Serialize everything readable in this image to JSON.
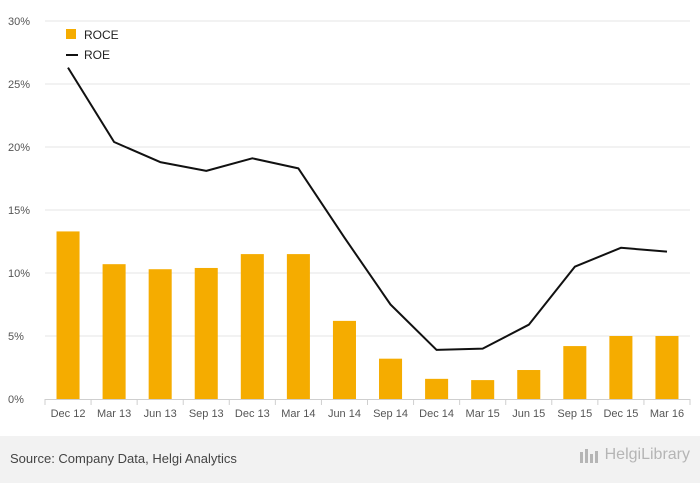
{
  "chart_data": {
    "type": "bar",
    "categories": [
      "Dec 12",
      "Mar 13",
      "Jun 13",
      "Sep 13",
      "Dec 13",
      "Mar 14",
      "Jun 14",
      "Sep 14",
      "Dec 14",
      "Mar 15",
      "Jun 15",
      "Sep 15",
      "Dec 15",
      "Mar 16"
    ],
    "series": [
      {
        "name": "ROCE",
        "type": "bar",
        "color": "#f5ac00",
        "values": [
          13.3,
          10.7,
          10.3,
          10.4,
          11.5,
          11.5,
          6.2,
          3.2,
          1.6,
          1.5,
          2.3,
          4.2,
          5.0,
          5.0
        ]
      },
      {
        "name": "ROE",
        "type": "line",
        "color": "#111111",
        "values": [
          26.3,
          20.4,
          18.8,
          18.1,
          19.1,
          18.3,
          12.8,
          7.5,
          3.9,
          4.0,
          5.9,
          10.5,
          12.0,
          11.7
        ]
      }
    ],
    "ylim": [
      0,
      30
    ],
    "y_ticks": [
      "0%",
      "5%",
      "10%",
      "15%",
      "20%",
      "25%",
      "30%"
    ],
    "grid": true,
    "legend_position": "top-left"
  },
  "footer": {
    "source": "Source: Company Data, Helgi Analytics",
    "brand": "HelgiLibrary"
  }
}
